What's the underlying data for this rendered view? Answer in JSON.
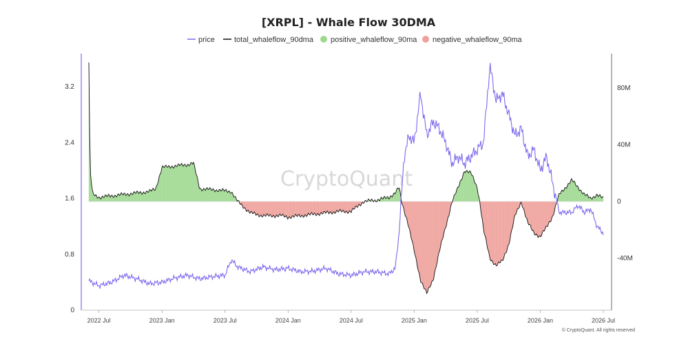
{
  "chart_data": {
    "type": "line",
    "title": "[XRPL] - Whale Flow 30DMA",
    "watermark": "CryptoQuant",
    "credit": "© CryptoQuant. All rights reserved",
    "legend": [
      {
        "name": "price",
        "kind": "line",
        "color": "#7b68ee"
      },
      {
        "name": "total_whaleflow_90dma",
        "kind": "line",
        "color": "#111111"
      },
      {
        "name": "positive_whaleflow_90ma",
        "kind": "dot",
        "color": "#9fd98f"
      },
      {
        "name": "negative_whaleflow_90ma",
        "kind": "dot",
        "color": "#f0a09a"
      }
    ],
    "x_ticks": [
      "2022 Jul",
      "2023 Jan",
      "2023 Jul",
      "2024 Jan",
      "2024 Jul",
      "2025 Jan",
      "2025 Jul",
      "2026 Jan",
      "2026 Jul"
    ],
    "x_range": [
      "2022-06",
      "2026-07"
    ],
    "y_left": {
      "ticks": [
        "0",
        "0.8",
        "1.6",
        "2.4",
        "3.2"
      ],
      "range": [
        0,
        3.5
      ]
    },
    "y_right": {
      "ticks": [
        "-40M",
        "0",
        "40M",
        "80M"
      ],
      "range": [
        -80,
        100
      ],
      "unit": "M"
    },
    "series": [
      {
        "name": "price",
        "axis": "left",
        "color": "#7b68ee",
        "x": [
          2022.42,
          2022.5,
          2022.6,
          2022.7,
          2022.8,
          2022.9,
          2023.0,
          2023.1,
          2023.2,
          2023.3,
          2023.4,
          2023.5,
          2023.55,
          2023.6,
          2023.7,
          2023.8,
          2023.9,
          2024.0,
          2024.1,
          2024.2,
          2024.3,
          2024.4,
          2024.5,
          2024.6,
          2024.7,
          2024.8,
          2024.85,
          2024.88,
          2024.92,
          2024.96,
          2025.0,
          2025.05,
          2025.1,
          2025.15,
          2025.2,
          2025.25,
          2025.3,
          2025.35,
          2025.4,
          2025.45,
          2025.5,
          2025.55,
          2025.6,
          2025.65,
          2025.7,
          2025.75,
          2025.8,
          2025.85,
          2025.9,
          2025.95,
          2026.0,
          2026.05,
          2026.1,
          2026.15,
          2026.2,
          2026.25,
          2026.3,
          2026.35,
          2026.4,
          2026.45,
          2026.5
        ],
        "values": [
          0.42,
          0.35,
          0.4,
          0.5,
          0.45,
          0.38,
          0.4,
          0.46,
          0.5,
          0.45,
          0.48,
          0.5,
          0.72,
          0.62,
          0.55,
          0.62,
          0.58,
          0.6,
          0.55,
          0.56,
          0.6,
          0.52,
          0.5,
          0.55,
          0.55,
          0.52,
          0.6,
          1.1,
          2.2,
          2.5,
          2.4,
          3.1,
          2.5,
          2.7,
          2.6,
          2.4,
          2.1,
          2.2,
          2.1,
          2.2,
          2.3,
          2.4,
          3.5,
          3.0,
          3.1,
          2.8,
          2.5,
          2.6,
          2.2,
          2.3,
          2.0,
          2.2,
          1.8,
          1.4,
          1.4,
          1.4,
          1.5,
          1.4,
          1.45,
          1.2,
          1.1
        ]
      },
      {
        "name": "total_whaleflow_90dma",
        "axis": "right",
        "color": "#111111",
        "x": [
          2022.42,
          2022.43,
          2022.45,
          2022.5,
          2022.7,
          2022.9,
          2022.95,
          2023.0,
          2023.2,
          2023.25,
          2023.3,
          2023.45,
          2023.55,
          2023.6,
          2023.7,
          2023.8,
          2023.95,
          2024.0,
          2024.2,
          2024.4,
          2024.5,
          2024.6,
          2024.7,
          2024.8,
          2024.85,
          2024.88,
          2024.9,
          2024.95,
          2025.0,
          2025.05,
          2025.1,
          2025.15,
          2025.2,
          2025.25,
          2025.3,
          2025.35,
          2025.4,
          2025.45,
          2025.5,
          2025.52,
          2025.55,
          2025.6,
          2025.65,
          2025.7,
          2025.75,
          2025.8,
          2025.85,
          2025.9,
          2025.95,
          2026.0,
          2026.05,
          2026.1,
          2026.15,
          2026.2,
          2026.25,
          2026.3,
          2026.35,
          2026.4,
          2026.45,
          2026.5
        ],
        "values": [
          98,
          22,
          5,
          3,
          5,
          7,
          9,
          24,
          26,
          27,
          9,
          8,
          7,
          0,
          -8,
          -10,
          -10,
          -11,
          -9,
          -7,
          -7,
          0,
          1,
          3,
          6,
          10,
          0,
          -15,
          -35,
          -55,
          -65,
          -55,
          -35,
          -18,
          0,
          10,
          22,
          20,
          10,
          0,
          -20,
          -40,
          -45,
          -42,
          -30,
          -10,
          0,
          -15,
          -22,
          -25,
          -18,
          -10,
          5,
          10,
          15,
          10,
          5,
          2,
          5,
          2
        ]
      }
    ]
  }
}
